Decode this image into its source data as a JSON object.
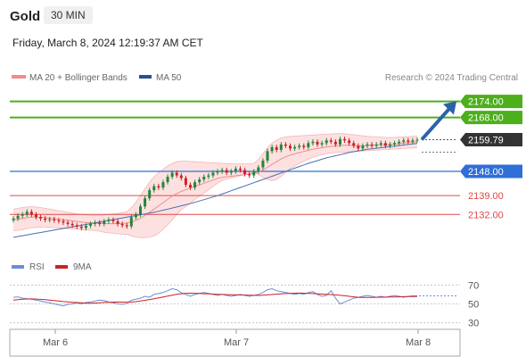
{
  "header": {
    "symbol": "Gold",
    "timeframe": "30 MIN"
  },
  "timestamp": "Friday, March 8, 2024 12:19:37 AM CET",
  "legend": {
    "bollinger": "MA 20 + Bollinger Bands",
    "ma50": "MA 50"
  },
  "credit": "Research © 2024 Trading Central",
  "colors": {
    "up": "#22863a",
    "down": "#cc2222",
    "resistance": "#4caf1c",
    "current": "#333333",
    "pivot": "#2f6fd6",
    "support": "#e04848",
    "ma50": "#4a6fb5",
    "ma20": "#f28b8b",
    "band_fill": "#fde1e1",
    "arrow": "#2a63a8"
  },
  "chart_data": [
    {
      "type": "candlestick",
      "ylim": [
        2120.5,
        2178.5
      ],
      "x_ticks": [
        "Mar 6",
        "Mar 7",
        "Mar 8"
      ],
      "levels": [
        {
          "label": "2174.00",
          "value": 2174.0,
          "kind": "resistance"
        },
        {
          "label": "2168.00",
          "value": 2168.0,
          "kind": "resistance"
        },
        {
          "label": "2159.79",
          "value": 2159.79,
          "kind": "current"
        },
        {
          "label": "2148.00",
          "value": 2148.0,
          "kind": "pivot"
        },
        {
          "label": "2139.00",
          "value": 2139.0,
          "kind": "support"
        },
        {
          "label": "2132.00",
          "value": 2132.0,
          "kind": "support"
        }
      ],
      "close": [
        2130.5,
        2131.5,
        2132.0,
        2133.0,
        2132.0,
        2131.0,
        2130.5,
        2130.0,
        2130.2,
        2129.8,
        2129.5,
        2129.0,
        2128.5,
        2128.0,
        2127.5,
        2127.0,
        2127.8,
        2128.5,
        2129.0,
        2128.5,
        2129.5,
        2130.0,
        2129.5,
        2128.5,
        2128.0,
        2127.6,
        2131.0,
        2132.0,
        2135.0,
        2138.0,
        2141.0,
        2142.5,
        2142.0,
        2144.0,
        2146.0,
        2147.5,
        2146.5,
        2145.5,
        2143.0,
        2142.0,
        2144.0,
        2145.0,
        2146.0,
        2146.5,
        2147.5,
        2148.0,
        2148.5,
        2147.5,
        2148.0,
        2149.0,
        2148.5,
        2147.0,
        2146.5,
        2148.0,
        2149.5,
        2152.0,
        2155.5,
        2157.0,
        2156.0,
        2158.0,
        2157.5,
        2156.5,
        2157.0,
        2157.5,
        2157.0,
        2158.5,
        2159.0,
        2158.0,
        2158.5,
        2159.5,
        2159.0,
        2158.0,
        2160.0,
        2159.5,
        2158.5,
        2157.5,
        2156.5,
        2157.5,
        2158.0,
        2157.5,
        2158.0,
        2158.5,
        2157.5,
        2158.0,
        2158.5,
        2159.0,
        2159.5,
        2159.0,
        2159.5,
        2159.79
      ],
      "ma20": [
        2130.0,
        2130.2,
        2130.5,
        2130.8,
        2131.0,
        2131.0,
        2131.0,
        2130.8,
        2130.6,
        2130.4,
        2130.2,
        2130.0,
        2129.8,
        2129.6,
        2129.4,
        2129.2,
        2129.0,
        2128.9,
        2128.8,
        2128.7,
        2128.6,
        2128.6,
        2128.6,
        2128.6,
        2128.7,
        2128.8,
        2129.2,
        2129.8,
        2130.6,
        2131.6,
        2132.8,
        2134.0,
        2135.2,
        2136.4,
        2137.6,
        2138.8,
        2139.8,
        2140.6,
        2141.2,
        2141.8,
        2142.4,
        2143.0,
        2143.6,
        2144.2,
        2144.8,
        2145.4,
        2145.8,
        2146.0,
        2146.2,
        2146.4,
        2146.6,
        2146.8,
        2147.0,
        2147.3,
        2147.8,
        2148.5,
        2149.5,
        2150.6,
        2151.6,
        2152.6,
        2153.4,
        2154.0,
        2154.5,
        2155.0,
        2155.4,
        2155.8,
        2156.2,
        2156.5,
        2156.8,
        2157.1,
        2157.3,
        2157.4,
        2157.6,
        2157.7,
        2157.7,
        2157.6,
        2157.5,
        2157.5,
        2157.6,
        2157.7,
        2157.8,
        2157.9,
        2157.9,
        2158.0,
        2158.1,
        2158.3,
        2158.5,
        2158.7,
        2158.9,
        2159.0
      ],
      "bb_upper": [
        2134.0,
        2134.3,
        2134.6,
        2134.8,
        2134.9,
        2134.8,
        2134.6,
        2134.3,
        2134.0,
        2133.7,
        2133.4,
        2133.1,
        2132.8,
        2132.5,
        2132.2,
        2132.0,
        2131.8,
        2131.6,
        2131.6,
        2131.6,
        2131.8,
        2132.0,
        2132.2,
        2132.4,
        2132.7,
        2133.0,
        2134.5,
        2136.5,
        2139.0,
        2141.5,
        2144.0,
        2146.0,
        2147.5,
        2148.8,
        2150.0,
        2151.0,
        2151.6,
        2151.8,
        2151.8,
        2151.7,
        2151.6,
        2151.5,
        2151.4,
        2151.3,
        2151.2,
        2151.1,
        2151.0,
        2150.9,
        2150.8,
        2150.8,
        2150.8,
        2150.8,
        2150.8,
        2151.0,
        2152.5,
        2154.5,
        2156.8,
        2158.5,
        2159.6,
        2160.4,
        2160.8,
        2161.0,
        2161.1,
        2161.2,
        2161.3,
        2161.4,
        2161.5,
        2161.6,
        2161.7,
        2161.8,
        2161.9,
        2162.0,
        2162.0,
        2162.0,
        2161.8,
        2161.6,
        2161.4,
        2161.2,
        2161.0,
        2160.9,
        2160.8,
        2160.7,
        2160.6,
        2160.6,
        2160.6,
        2160.7,
        2160.8,
        2160.9,
        2161.0,
        2161.1
      ],
      "bb_lower": [
        2126.0,
        2126.1,
        2126.4,
        2126.8,
        2127.1,
        2127.2,
        2127.4,
        2127.3,
        2127.2,
        2127.1,
        2127.0,
        2126.9,
        2126.8,
        2126.7,
        2126.6,
        2126.4,
        2126.2,
        2126.2,
        2126.0,
        2125.8,
        2125.4,
        2125.2,
        2125.0,
        2124.8,
        2124.7,
        2124.6,
        2124.0,
        2123.6,
        2123.4,
        2123.4,
        2123.6,
        2124.0,
        2125.0,
        2126.5,
        2128.2,
        2130.0,
        2132.0,
        2133.8,
        2135.0,
        2136.2,
        2137.5,
        2138.8,
        2140.0,
        2141.2,
        2142.4,
        2143.6,
        2144.6,
        2145.1,
        2145.6,
        2146.0,
        2146.4,
        2146.8,
        2147.2,
        2147.6,
        2146.8,
        2145.8,
        2145.0,
        2144.6,
        2145.0,
        2146.2,
        2147.6,
        2149.0,
        2150.1,
        2151.0,
        2151.8,
        2152.6,
        2153.2,
        2153.8,
        2154.2,
        2154.6,
        2154.8,
        2155.0,
        2155.1,
        2155.2,
        2155.3,
        2155.4,
        2155.5,
        2155.6,
        2155.7,
        2155.8,
        2155.9,
        2156.0,
        2156.1,
        2156.2,
        2156.3,
        2156.4,
        2156.5,
        2156.6,
        2156.7,
        2156.9
      ],
      "ma50": [
        2123.5,
        2123.8,
        2124.1,
        2124.4,
        2124.7,
        2125.0,
        2125.3,
        2125.6,
        2125.9,
        2126.2,
        2126.5,
        2126.8,
        2127.1,
        2127.4,
        2127.7,
        2128.0,
        2128.3,
        2128.6,
        2128.9,
        2129.2,
        2129.5,
        2129.8,
        2130.1,
        2130.4,
        2130.7,
        2131.0,
        2131.3,
        2131.6,
        2131.9,
        2132.2,
        2132.5,
        2132.8,
        2133.2,
        2133.6,
        2134.0,
        2134.4,
        2134.8,
        2135.2,
        2135.6,
        2136.0,
        2136.5,
        2137.0,
        2137.5,
        2138.0,
        2138.5,
        2139.0,
        2139.6,
        2140.2,
        2140.8,
        2141.4,
        2142.0,
        2142.6,
        2143.2,
        2143.8,
        2144.4,
        2145.0,
        2145.6,
        2146.2,
        2146.8,
        2147.4,
        2148.0,
        2148.6,
        2149.2,
        2149.8,
        2150.4,
        2151.0,
        2151.5,
        2152.0,
        2152.5,
        2153.0,
        2153.4,
        2153.8,
        2154.2,
        2154.6,
        2155.0,
        2155.3,
        2155.6,
        2155.9,
        2156.2,
        2156.4,
        2156.6,
        2156.8,
        2157.0,
        2157.2,
        2157.4,
        2157.6,
        2157.8,
        2158.0,
        2158.2,
        2158.4
      ],
      "projection_arrow": {
        "from_value": 2159.79,
        "to_value": 2174.0
      }
    },
    {
      "type": "line",
      "legend": [
        "RSI",
        "9MA"
      ],
      "y_ticks": [
        "70",
        "50",
        "30"
      ],
      "ylim": [
        25,
        75
      ],
      "rsi": [
        57,
        57.5,
        56,
        55.5,
        55,
        54,
        53,
        52,
        51,
        50,
        49,
        48,
        49.5,
        50,
        51,
        50,
        51.5,
        52,
        53,
        54,
        53.5,
        52,
        51,
        50,
        49.5,
        50.5,
        54,
        55,
        56,
        58,
        57,
        60,
        61,
        62,
        64,
        66,
        65,
        62,
        60,
        58,
        60,
        61,
        62,
        61,
        60,
        59,
        60,
        59,
        58,
        59,
        60,
        59,
        58,
        59,
        60,
        62,
        65,
        66,
        64,
        63,
        62,
        61,
        60,
        61,
        60,
        62,
        63,
        60,
        58,
        59,
        64,
        56,
        50,
        52,
        54,
        56,
        57,
        58,
        59,
        58,
        57,
        58,
        57,
        58,
        59,
        58,
        57,
        58,
        58.5,
        58.5
      ],
      "ma9": [
        54,
        54.5,
        55,
        55.2,
        55.3,
        55.1,
        54.8,
        54.4,
        54,
        53.5,
        53,
        52.5,
        52.1,
        51.7,
        51.4,
        51.1,
        50.8,
        50.7,
        50.9,
        51.2,
        51.5,
        51.7,
        51.9,
        52,
        51.9,
        51.8,
        52,
        52.4,
        53,
        53.8,
        54.6,
        55.5,
        56.4,
        57.3,
        58.2,
        59.2,
        60.1,
        60.8,
        61.2,
        61.3,
        61.2,
        61,
        60.8,
        60.6,
        60.4,
        60.2,
        60,
        59.8,
        59.6,
        59.5,
        59.4,
        59.3,
        59.2,
        59.1,
        59,
        59.2,
        59.5,
        59.9,
        60.3,
        60.6,
        60.9,
        61.1,
        61.3,
        61.4,
        61.3,
        61.1,
        60.9,
        60.7,
        60.4,
        60.1,
        59.8,
        59.5,
        59.1,
        58.6,
        58,
        57.5,
        57,
        56.8,
        56.8,
        56.9,
        57,
        57.1,
        57.2,
        57.3,
        57.4,
        57.5,
        57.6,
        57.7,
        57.8,
        57.9
      ]
    }
  ]
}
